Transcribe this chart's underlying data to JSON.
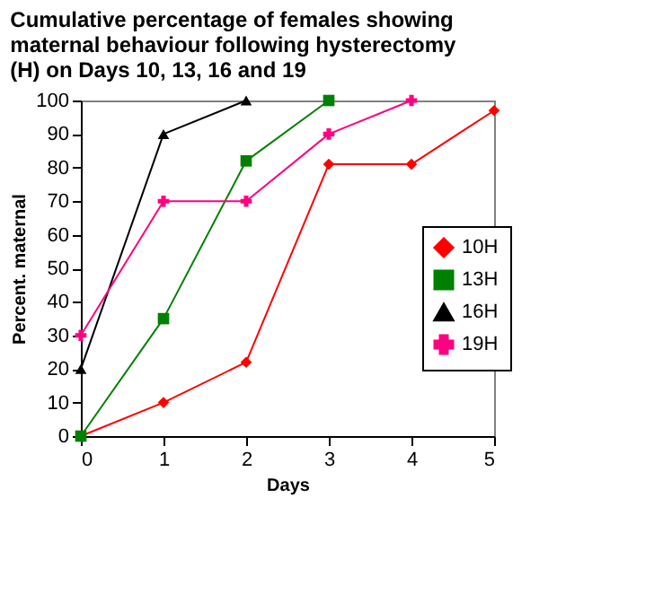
{
  "chart_data": {
    "type": "line",
    "title": "Cumulative percentage of females showing\nmaternal behaviour following hysterectomy\n(H) on Days 10, 13, 16 and 19",
    "xlabel": "Days",
    "ylabel": "Percent. maternal",
    "xlim": [
      0,
      5
    ],
    "xticks": [
      0,
      1,
      2,
      3,
      4,
      5
    ],
    "ylim": [
      0,
      100
    ],
    "yticks": [
      0,
      10,
      20,
      30,
      40,
      50,
      60,
      70,
      80,
      90,
      100
    ],
    "grid": false,
    "legend": "right",
    "series": [
      {
        "name": "10H",
        "color": "#ff0000",
        "marker": "diamond",
        "x": [
          0,
          1,
          2,
          3,
          4,
          5
        ],
        "values": [
          0,
          10,
          22,
          81,
          81,
          97
        ]
      },
      {
        "name": "13H",
        "color": "#008000",
        "marker": "square",
        "x": [
          0,
          1,
          2,
          3
        ],
        "values": [
          0,
          35,
          82,
          100
        ]
      },
      {
        "name": "16H",
        "color": "#000000",
        "marker": "triangle",
        "x": [
          0,
          1,
          2
        ],
        "values": [
          20,
          90,
          100
        ]
      },
      {
        "name": "19H",
        "color": "#ff0080",
        "marker": "cross",
        "x": [
          0,
          1,
          2,
          3,
          4
        ],
        "values": [
          30,
          70,
          70,
          90,
          100
        ]
      }
    ]
  }
}
